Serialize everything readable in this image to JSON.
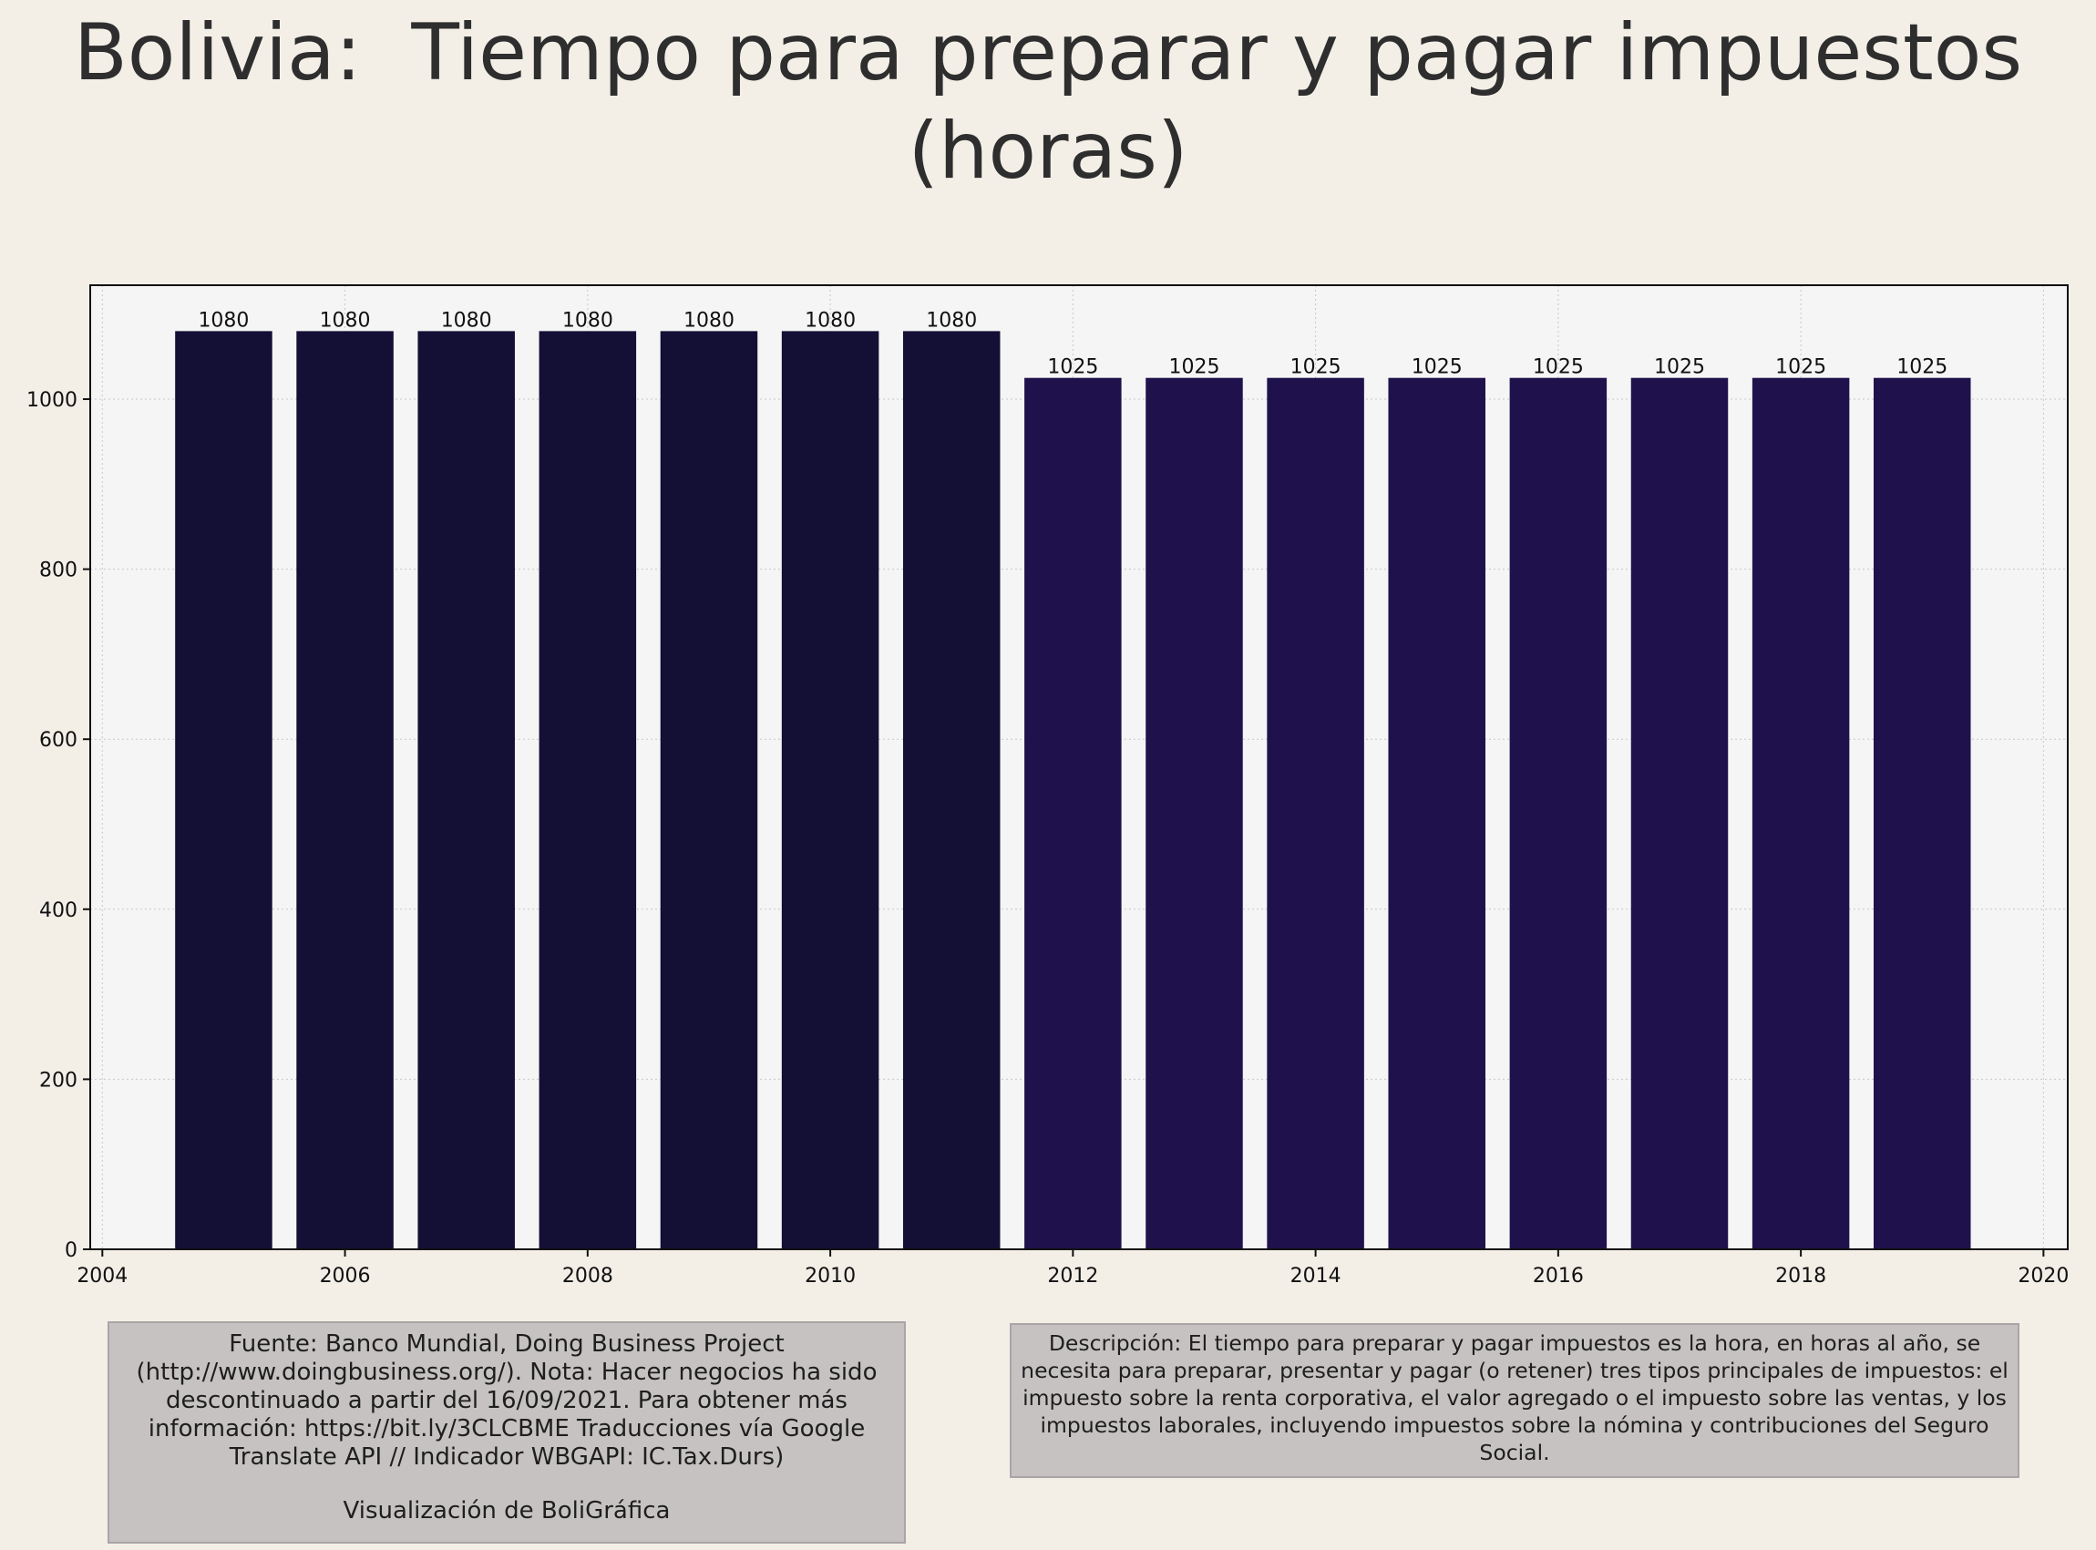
{
  "title_lines": [
    "Bolivia:  Tiempo para preparar y pagar impuestos",
    "(horas)"
  ],
  "chart_data": {
    "type": "bar",
    "title": "Bolivia:  Tiempo para preparar y pagar impuestos (horas)",
    "xlabel": "",
    "ylabel": "",
    "x": [
      2005,
      2006,
      2007,
      2008,
      2009,
      2010,
      2011,
      2012,
      2013,
      2014,
      2015,
      2016,
      2017,
      2018,
      2019
    ],
    "values": [
      1080,
      1080,
      1080,
      1080,
      1080,
      1080,
      1080,
      1025,
      1025,
      1025,
      1025,
      1025,
      1025,
      1025,
      1025
    ],
    "data_labels": [
      "1080",
      "1080",
      "1080",
      "1080",
      "1080",
      "1080",
      "1080",
      "1025",
      "1025",
      "1025",
      "1025",
      "1025",
      "1025",
      "1025",
      "1025"
    ],
    "xlim": [
      2003.9,
      2020.2
    ],
    "ylim": [
      0,
      1134
    ],
    "xticks": [
      2004,
      2006,
      2008,
      2010,
      2012,
      2014,
      2016,
      2018,
      2020
    ],
    "yticks": [
      0,
      200,
      400,
      600,
      800,
      1000
    ],
    "grid": true,
    "colors": {
      "bar_high": "#130f35",
      "bar_low": "#1f124c",
      "plot_background": "#f5f5f5",
      "page_background": "#f3efe7"
    }
  },
  "notes": {
    "source": "Fuente: Banco Mundial, Doing Business Project (http://www.doingbusiness.org/). Nota: Hacer negocios ha sido descontinuado a partir del 16/09/2021. Para obtener más información: https://bit.ly/3CLCBME Traducciones vía Google Translate API // Indicador WBGAPI: IC.Tax.Durs)",
    "credit": "Visualización de BoliGráfica",
    "description": "Descripción: El tiempo para preparar y pagar impuestos es la hora, en horas al año, se necesita para preparar, presentar y pagar (o retener) tres tipos principales de impuestos: el impuesto sobre la renta corporativa, el valor agregado o el impuesto sobre las ventas, y los impuestos laborales, incluyendo impuestos sobre la nómina y contribuciones del Seguro Social."
  }
}
